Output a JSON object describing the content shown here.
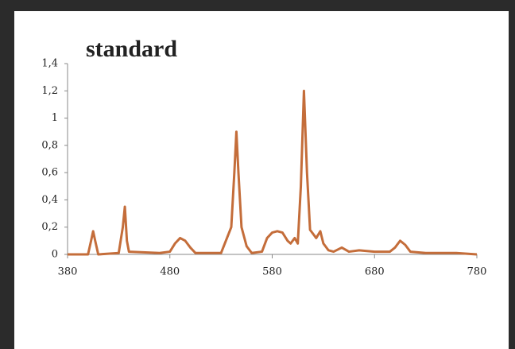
{
  "chart_data": {
    "type": "line",
    "title": "standard",
    "x": [
      380,
      400,
      403,
      405,
      407,
      410,
      430,
      434,
      436,
      438,
      440,
      470,
      480,
      485,
      490,
      495,
      500,
      505,
      530,
      540,
      543,
      545,
      547,
      550,
      555,
      560,
      570,
      575,
      580,
      585,
      590,
      595,
      598,
      602,
      605,
      608,
      611,
      614,
      617,
      620,
      623,
      627,
      630,
      635,
      640,
      648,
      655,
      665,
      680,
      695,
      700,
      705,
      710,
      715,
      730,
      760,
      780
    ],
    "series": [
      {
        "color": "#c46d3a",
        "values": [
          0,
          0,
          0.1,
          0.17,
          0.1,
          0,
          0.01,
          0.2,
          0.35,
          0.1,
          0.02,
          0.01,
          0.02,
          0.08,
          0.12,
          0.1,
          0.05,
          0.01,
          0.01,
          0.2,
          0.6,
          0.9,
          0.6,
          0.2,
          0.06,
          0.01,
          0.02,
          0.12,
          0.16,
          0.17,
          0.16,
          0.1,
          0.08,
          0.12,
          0.08,
          0.5,
          1.2,
          0.6,
          0.18,
          0.15,
          0.12,
          0.17,
          0.08,
          0.03,
          0.02,
          0.05,
          0.02,
          0.03,
          0.02,
          0.02,
          0.05,
          0.1,
          0.07,
          0.02,
          0.01,
          0.01,
          0
        ]
      }
    ],
    "xlim": [
      380,
      780
    ],
    "xticks": [
      380,
      480,
      580,
      680,
      780
    ],
    "ylim": [
      0,
      1.4
    ],
    "yticks": [
      0,
      {
        "value": 0.2,
        "label": "0,2"
      },
      {
        "value": 0.4,
        "label": "0,4"
      },
      {
        "value": 0.6,
        "label": "0,6"
      },
      {
        "value": 0.8,
        "label": "0,8"
      },
      1,
      {
        "value": 1.2,
        "label": "1,2"
      },
      {
        "value": 1.4,
        "label": "1,4"
      }
    ]
  }
}
